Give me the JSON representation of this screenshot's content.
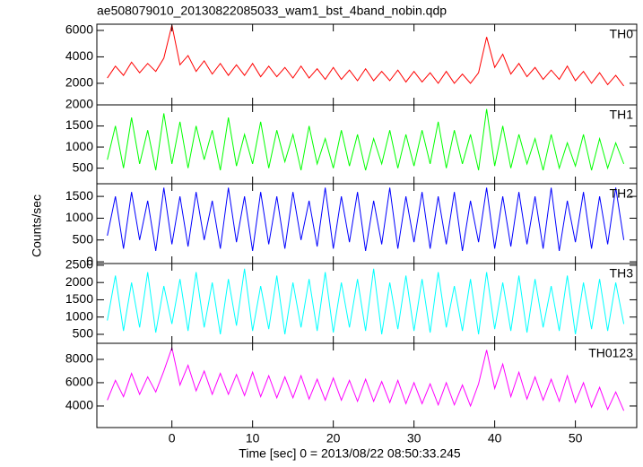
{
  "chart_data": {
    "type": "line",
    "title": "ae508079010_20130822085033_wam1_bst_4band_nobin.qdp",
    "x_label": "Time [sec] 0 = 2013/08/22 08:50:33.245",
    "y_label": "Counts/sec",
    "xlim": [
      -9.3,
      57.6
    ],
    "xticks": [
      0,
      10,
      20,
      30,
      40,
      50
    ],
    "x": [
      -8,
      -7,
      -6,
      -5,
      -4,
      -3,
      -2,
      -1,
      0,
      1,
      2,
      3,
      4,
      5,
      6,
      7,
      8,
      9,
      10,
      11,
      12,
      13,
      14,
      15,
      16,
      17,
      18,
      19,
      20,
      21,
      22,
      23,
      24,
      25,
      26,
      27,
      28,
      29,
      30,
      31,
      32,
      33,
      34,
      35,
      36,
      37,
      38,
      39,
      40,
      41,
      42,
      43,
      44,
      45,
      46,
      47,
      48,
      49,
      50,
      51,
      52,
      53,
      54,
      55,
      56
    ],
    "series": [
      {
        "name": "TH0",
        "color": "#ff0000",
        "ylim": [
          370,
          6470
        ],
        "yticks": [
          2000,
          4000,
          6000
        ],
        "values": [
          2400,
          3300,
          2600,
          3600,
          2800,
          3500,
          2900,
          3900,
          6400,
          3400,
          4100,
          2900,
          3700,
          2700,
          3500,
          2600,
          3400,
          2600,
          3500,
          2500,
          3300,
          2500,
          3200,
          2400,
          3300,
          2400,
          3100,
          2300,
          3200,
          2300,
          3000,
          2200,
          3100,
          2200,
          2900,
          2200,
          3000,
          2100,
          2900,
          2100,
          2800,
          2000,
          2900,
          2000,
          2700,
          2000,
          2800,
          5500,
          3200,
          4200,
          2700,
          3500,
          2500,
          3200,
          2300,
          3000,
          2300,
          3300,
          2200,
          2900,
          2000,
          2800,
          1900,
          2600,
          1800
        ]
      },
      {
        "name": "TH1",
        "color": "#00ff00",
        "ylim": [
          130,
          2000
        ],
        "yticks": [
          500,
          1000,
          1500,
          2000
        ],
        "values": [
          700,
          1500,
          500,
          1700,
          600,
          1400,
          450,
          1800,
          600,
          1600,
          500,
          1500,
          700,
          1400,
          450,
          1700,
          550,
          1300,
          600,
          1600,
          500,
          1400,
          650,
          1300,
          450,
          1500,
          600,
          1200,
          500,
          1400,
          550,
          1300,
          450,
          1200,
          600,
          1400,
          500,
          1300,
          550,
          1400,
          600,
          1600,
          500,
          1400,
          600,
          1300,
          450,
          1900,
          550,
          1500,
          500,
          1300,
          600,
          1200,
          450,
          1300,
          500,
          1100,
          550,
          1300,
          450,
          1200,
          500,
          1100,
          600
        ]
      },
      {
        "name": "TH2",
        "color": "#0000ff",
        "ylim": [
          -40,
          1790
        ],
        "yticks": [
          0,
          500,
          1000,
          1500
        ],
        "values": [
          600,
          1500,
          300,
          1600,
          500,
          1400,
          250,
          1700,
          400,
          1500,
          350,
          1600,
          500,
          1400,
          300,
          1700,
          450,
          1500,
          250,
          1600,
          400,
          1500,
          300,
          1600,
          500,
          1400,
          350,
          1700,
          300,
          1500,
          450,
          1600,
          250,
          1400,
          400,
          1700,
          300,
          1500,
          450,
          1600,
          300,
          1500,
          400,
          1600,
          250,
          1400,
          450,
          1700,
          300,
          1500,
          350,
          1600,
          400,
          1500,
          300,
          1700,
          250,
          1400,
          450,
          1600,
          300,
          1500,
          400,
          1700,
          500
        ]
      },
      {
        "name": "TH3",
        "color": "#00ffff",
        "ylim": [
          240,
          2550
        ],
        "yticks": [
          500,
          1000,
          1500,
          2000,
          2500
        ],
        "values": [
          900,
          2200,
          600,
          2000,
          700,
          2300,
          550,
          1900,
          800,
          2100,
          600,
          2300,
          700,
          2000,
          500,
          2100,
          750,
          2400,
          600,
          1900,
          650,
          2200,
          500,
          2000,
          700,
          2100,
          600,
          2300,
          550,
          2000,
          700,
          2100,
          600,
          2400,
          500,
          2000,
          650,
          2200,
          600,
          2100,
          550,
          2300,
          700,
          1900,
          600,
          2100,
          500,
          2300,
          650,
          2000,
          600,
          2200,
          550,
          2100,
          700,
          1900,
          600,
          2200,
          500,
          2000,
          650,
          2100,
          600,
          2000,
          800
        ]
      },
      {
        "name": "TH0123",
        "color": "#ff00ff",
        "ylim": [
          2150,
          9380
        ],
        "yticks": [
          4000,
          6000,
          8000
        ],
        "values": [
          4500,
          6200,
          4800,
          6800,
          5000,
          6500,
          5200,
          7000,
          9000,
          5800,
          7500,
          5300,
          7000,
          5000,
          6800,
          5000,
          6700,
          4900,
          6900,
          4800,
          6600,
          4700,
          6500,
          4700,
          6600,
          4600,
          6300,
          4500,
          6400,
          4500,
          6200,
          4400,
          6300,
          4400,
          6100,
          4300,
          6200,
          4200,
          6000,
          4200,
          5900,
          4100,
          6000,
          4100,
          5800,
          4000,
          5900,
          8800,
          5500,
          7600,
          4800,
          6900,
          4600,
          6500,
          4500,
          6300,
          4400,
          6600,
          4300,
          6000,
          3900,
          5600,
          3700,
          5200,
          3600
        ]
      }
    ]
  }
}
